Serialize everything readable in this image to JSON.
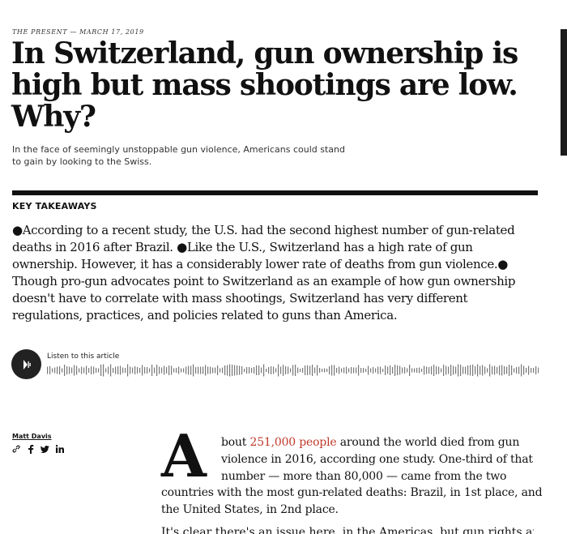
{
  "kicker": "THE PRESENT — MARCH 17, 2019",
  "headline": "In Switzerland, gun ownership is high but mass shootings are low. Why?",
  "dek": "In the face of seemingly unstoppable gun violence, Americans could stand to gain by looking to the Swiss.",
  "key_takeaways": {
    "heading": "KEY TAKEAWAYS",
    "items": [
      "According to a recent study, the U.S. had the second highest number of gun-related deaths in 2016 after Brazil.",
      "Like the U.S., Switzerland has a high rate of gun ownership. However, it has a considerably lower rate of deaths from gun violence.",
      "Though pro-gun advocates point to Switzerland as an example of how gun ownership doesn't have to correlate with mass shootings, Switzerland has very different regulations, practices, and policies related to guns than America."
    ]
  },
  "audio": {
    "label": "Listen to this article"
  },
  "author": "Matt Davis",
  "share_icons": [
    "link-icon",
    "facebook-icon",
    "twitter-icon",
    "linkedin-icon"
  ],
  "article": {
    "drop_cap": "A",
    "line1_pre": "bout ",
    "line1_link": "251,000 people",
    "line1_post": " around the world died from gun",
    "line2": "violence in 2016, according one study. One-third of that",
    "line3": "number — more than 80,000 — came from the two",
    "line4": "countries with the most gun-related deaths: Brazil, in 1st place, and",
    "line5": "the United States, in 2nd place.",
    "line6_partial": "It's clear there's an issue here, in the Americas, but gun rights are a"
  },
  "colors": {
    "link": "#c0392b",
    "rule": "#111111"
  }
}
